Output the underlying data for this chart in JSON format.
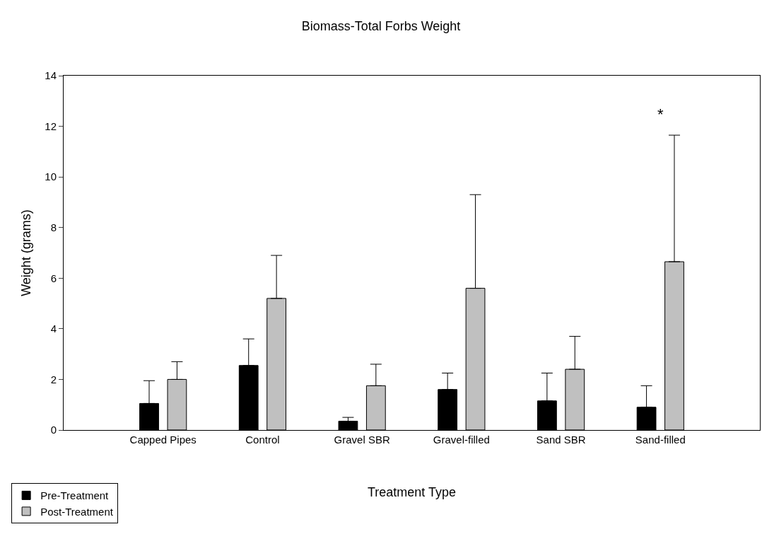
{
  "chart_data": {
    "type": "bar",
    "title": "Biomass-Total Forbs Weight",
    "xlabel": "Treatment Type",
    "ylabel": "Weight (grams)",
    "categories": [
      "Capped Pipes",
      "Control",
      "Gravel SBR",
      "Gravel-filled",
      "Sand SBR",
      "Sand-filled"
    ],
    "series": [
      {
        "name": "Pre-Treatment",
        "color": "#000000",
        "values": [
          1.05,
          2.55,
          0.35,
          1.6,
          1.15,
          0.9
        ],
        "errors": [
          [
            1.05,
            1.95
          ],
          [
            2.55,
            3.6
          ],
          [
            0.35,
            0.5
          ],
          [
            1.6,
            2.25
          ],
          [
            1.15,
            2.25
          ],
          [
            0.9,
            1.75
          ]
        ]
      },
      {
        "name": "Post-Treatment",
        "color": "#c0c0c0",
        "values": [
          2.0,
          5.2,
          1.75,
          5.6,
          2.4,
          6.65
        ],
        "errors": [
          [
            2.0,
            2.7
          ],
          [
            5.2,
            6.9
          ],
          [
            1.75,
            2.6
          ],
          [
            5.6,
            9.3
          ],
          [
            2.4,
            3.7
          ],
          [
            6.65,
            11.65
          ]
        ]
      }
    ],
    "annotations": [
      "*"
    ],
    "ylim": [
      0,
      14
    ],
    "yticks": [
      0,
      2,
      4,
      6,
      8,
      10,
      12,
      14
    ],
    "legend": "bottom left"
  }
}
